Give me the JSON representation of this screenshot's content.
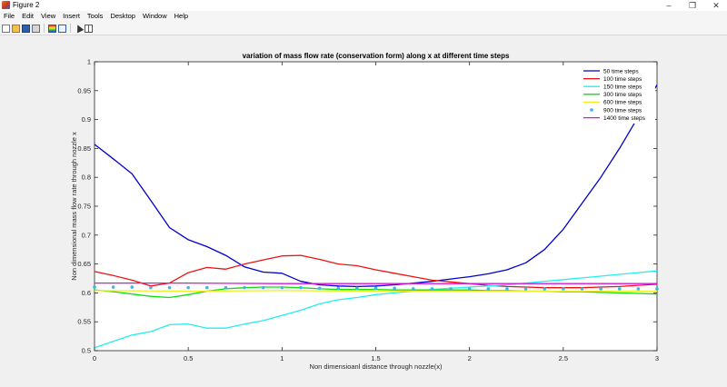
{
  "window": {
    "title": "Figure 2",
    "minimize": "–",
    "maximize": "❐",
    "close": "✕"
  },
  "menu": [
    "File",
    "Edit",
    "View",
    "Insert",
    "Tools",
    "Desktop",
    "Window",
    "Help"
  ],
  "toolbar": [
    "new-figure-icon",
    "open-file-icon",
    "save-icon",
    "print-icon",
    "colorbar-icon",
    "legend-icon",
    "pointer-icon",
    "plot-tools-icon"
  ],
  "chart_data": {
    "type": "line",
    "title": "variation of mass flow rate (conservation form) along x at different time steps",
    "xlabel": "Non dimensioanl distance through nozzle(x)",
    "ylabel": "Non dimensional mass flow rate through nozzle x",
    "xlim": [
      0,
      3
    ],
    "ylim": [
      0.5,
      1
    ],
    "xticks": [
      "0",
      "0.5",
      "1",
      "1.5",
      "2",
      "2.5",
      "3"
    ],
    "yticks": [
      "0.5",
      "0.55",
      "0.6",
      "0.65",
      "0.7",
      "0.75",
      "0.8",
      "0.85",
      "0.9",
      "0.95",
      "1"
    ],
    "grid": false,
    "legend_position": "top-right",
    "series": [
      {
        "name": "50 time steps",
        "color": "#0000cc",
        "style": "line",
        "x": [
          0,
          0.1,
          0.2,
          0.3,
          0.4,
          0.5,
          0.6,
          0.7,
          0.8,
          0.9,
          1.0,
          1.1,
          1.2,
          1.3,
          1.4,
          1.5,
          1.6,
          1.7,
          1.8,
          1.9,
          2.0,
          2.1,
          2.2,
          2.3,
          2.4,
          2.5,
          2.6,
          2.7,
          2.8,
          2.9,
          3.0
        ],
        "y": [
          0.857,
          0.832,
          0.806,
          0.76,
          0.713,
          0.692,
          0.68,
          0.665,
          0.645,
          0.636,
          0.634,
          0.62,
          0.614,
          0.612,
          0.611,
          0.612,
          0.614,
          0.617,
          0.62,
          0.624,
          0.628,
          0.633,
          0.64,
          0.652,
          0.675,
          0.71,
          0.755,
          0.8,
          0.85,
          0.905,
          0.96
        ]
      },
      {
        "name": "100 time steps",
        "color": "#ee1111",
        "style": "line",
        "x": [
          0,
          0.1,
          0.2,
          0.3,
          0.4,
          0.5,
          0.6,
          0.7,
          0.8,
          0.9,
          1.0,
          1.1,
          1.2,
          1.3,
          1.4,
          1.5,
          1.6,
          1.7,
          1.8,
          1.9,
          2.0,
          2.1,
          2.2,
          2.3,
          2.4,
          2.5,
          2.6,
          2.7,
          2.8,
          2.9,
          3.0
        ],
        "y": [
          0.637,
          0.63,
          0.622,
          0.612,
          0.617,
          0.635,
          0.644,
          0.641,
          0.65,
          0.657,
          0.664,
          0.665,
          0.658,
          0.65,
          0.647,
          0.64,
          0.634,
          0.628,
          0.622,
          0.619,
          0.616,
          0.613,
          0.611,
          0.61,
          0.609,
          0.609,
          0.609,
          0.61,
          0.611,
          0.613,
          0.615
        ]
      },
      {
        "name": "150 time steps",
        "color": "#22eeee",
        "style": "line",
        "x": [
          0,
          0.1,
          0.2,
          0.3,
          0.4,
          0.5,
          0.6,
          0.7,
          0.8,
          0.9,
          1.0,
          1.1,
          1.2,
          1.3,
          1.4,
          1.5,
          1.6,
          1.7,
          1.8,
          1.9,
          2.0,
          2.1,
          2.2,
          2.3,
          2.4,
          2.5,
          2.6,
          2.7,
          2.8,
          2.9,
          3.0
        ],
        "y": [
          0.505,
          0.516,
          0.527,
          0.533,
          0.545,
          0.546,
          0.539,
          0.539,
          0.546,
          0.552,
          0.561,
          0.57,
          0.581,
          0.588,
          0.592,
          0.597,
          0.6,
          0.603,
          0.606,
          0.608,
          0.61,
          0.612,
          0.614,
          0.617,
          0.62,
          0.623,
          0.626,
          0.629,
          0.632,
          0.635,
          0.638
        ]
      },
      {
        "name": "300 time steps",
        "color": "#11dd11",
        "style": "line",
        "x": [
          0,
          0.1,
          0.2,
          0.3,
          0.4,
          0.5,
          0.6,
          0.7,
          0.8,
          0.9,
          1.0,
          1.1,
          1.2,
          1.3,
          1.4,
          1.5,
          1.6,
          1.7,
          1.8,
          1.9,
          2.0,
          2.1,
          2.2,
          2.3,
          2.4,
          2.5,
          2.6,
          2.7,
          2.8,
          2.9,
          3.0
        ],
        "y": [
          0.605,
          0.602,
          0.598,
          0.594,
          0.592,
          0.597,
          0.603,
          0.607,
          0.609,
          0.61,
          0.61,
          0.609,
          0.607,
          0.606,
          0.606,
          0.606,
          0.605,
          0.605,
          0.605,
          0.605,
          0.605,
          0.604,
          0.604,
          0.603,
          0.603,
          0.602,
          0.602,
          0.601,
          0.6,
          0.599,
          0.598
        ]
      },
      {
        "name": "600 time steps",
        "color": "#eeee22",
        "style": "line",
        "x": [
          0,
          0.5,
          1.0,
          1.5,
          2.0,
          2.5,
          3.0
        ],
        "y": [
          0.604,
          0.603,
          0.604,
          0.603,
          0.603,
          0.603,
          0.603
        ]
      },
      {
        "name": "900 time steps",
        "color": "#3ab8e8",
        "style": "markers",
        "x": [
          0,
          0.1,
          0.2,
          0.3,
          0.4,
          0.5,
          0.6,
          0.7,
          0.8,
          0.9,
          1.0,
          1.1,
          1.2,
          1.3,
          1.4,
          1.5,
          1.6,
          1.7,
          1.8,
          1.9,
          2.0,
          2.1,
          2.2,
          2.3,
          2.4,
          2.5,
          2.6,
          2.7,
          2.8,
          2.9,
          3.0
        ],
        "y": [
          0.61,
          0.61,
          0.61,
          0.609,
          0.609,
          0.609,
          0.609,
          0.609,
          0.609,
          0.609,
          0.609,
          0.609,
          0.608,
          0.608,
          0.608,
          0.608,
          0.608,
          0.607,
          0.607,
          0.607,
          0.607,
          0.607,
          0.607,
          0.607,
          0.607,
          0.607,
          0.607,
          0.607,
          0.607,
          0.607,
          0.607
        ]
      },
      {
        "name": "1400 time steps",
        "color": "#dd11dd",
        "style": "line",
        "x": [
          0,
          0.5,
          1.0,
          1.5,
          2.0,
          2.5,
          3.0
        ],
        "y": [
          0.617,
          0.617,
          0.616,
          0.616,
          0.616,
          0.616,
          0.616
        ]
      }
    ]
  }
}
